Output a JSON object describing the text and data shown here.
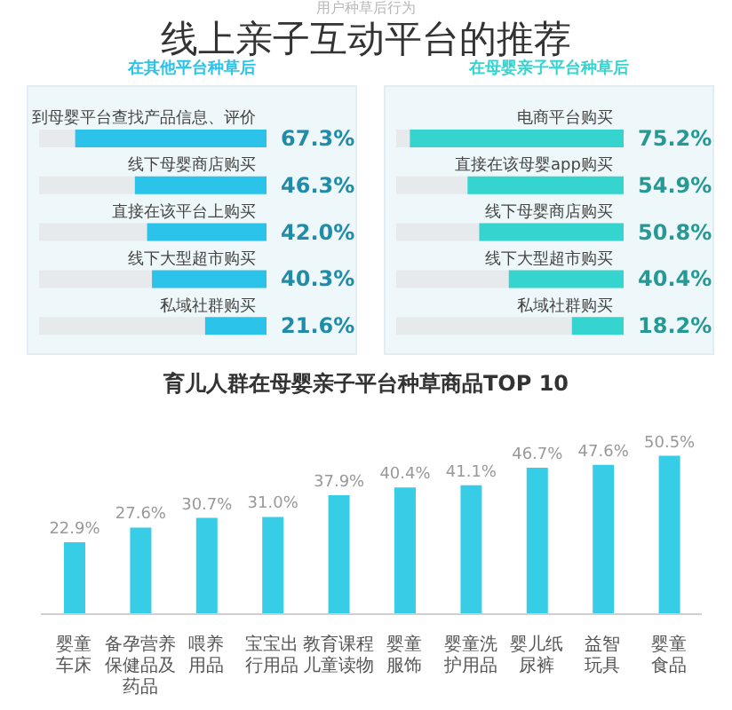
{
  "chart_data": [
    {
      "type": "other",
      "title": "线上亲子互动平台的推荐",
      "subtitle": "用户种草后行为"
    },
    {
      "type": "bar",
      "orientation": "horizontal",
      "title": "在其他平台种草后",
      "categories": [
        "到母婴平台查找产品信息、评价",
        "线下母婴商店购买",
        "直接在该平台上购买",
        "线下大型超市购买",
        "私域社群购买"
      ],
      "values": [
        67.3,
        46.3,
        42.0,
        40.3,
        21.6
      ],
      "value_labels": [
        "67.3%",
        "46.3%",
        "42.0%",
        "40.3%",
        "21.6%"
      ],
      "color": "#2cc3ea"
    },
    {
      "type": "bar",
      "orientation": "horizontal",
      "title": "在母婴亲子平台种草后",
      "categories": [
        "电商平台购买",
        "直接在该母婴app购买",
        "线下母婴商店购买",
        "线下大型超市购买",
        "私域社群购买"
      ],
      "values": [
        75.2,
        54.9,
        50.8,
        40.4,
        18.2
      ],
      "value_labels": [
        "75.2%",
        "54.9%",
        "50.8%",
        "40.4%",
        "18.2%"
      ],
      "color": "#36d4cf"
    },
    {
      "type": "bar",
      "title": "育儿人群在母婴亲子平台种草商品TOP 10",
      "categories": [
        "婴童车床",
        "备孕营养保健品及药品",
        "喂养用品",
        "宝宝出行用品",
        "教育课程儿童读物",
        "婴童服饰",
        "婴童洗护用品",
        "婴儿纸尿裤",
        "益智玩具",
        "婴童食品"
      ],
      "values": [
        22.9,
        27.6,
        30.7,
        31.0,
        37.9,
        40.4,
        41.1,
        46.7,
        47.6,
        50.5
      ],
      "value_labels": [
        "22.9%",
        "27.6%",
        "30.7%",
        "31.0%",
        "37.9%",
        "40.4%",
        "41.1%",
        "46.7%",
        "47.6%",
        "50.5%"
      ],
      "color": "#38cde6"
    }
  ]
}
